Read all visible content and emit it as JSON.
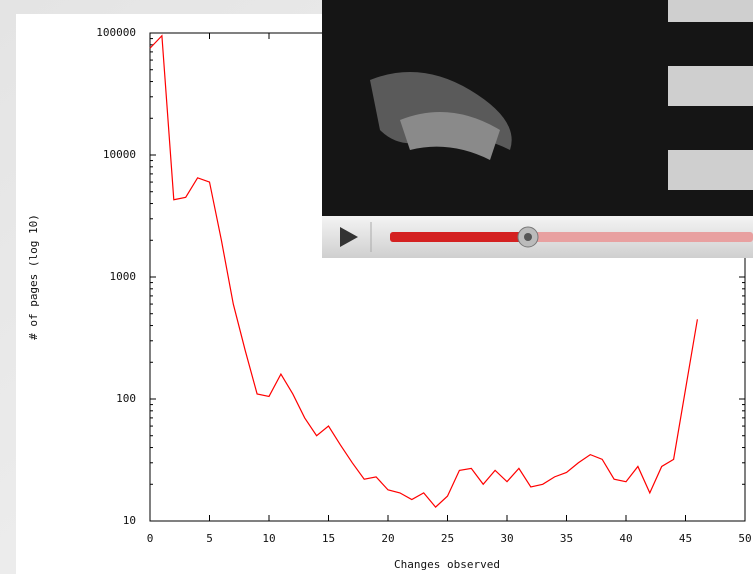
{
  "chart_data": {
    "type": "line",
    "log_y": true,
    "xlabel": "Changes observed",
    "ylabel": "# of pages (log 10)",
    "xlim": [
      0,
      50
    ],
    "ylim": [
      10,
      100000
    ],
    "xticks": [
      0,
      5,
      10,
      15,
      20,
      25,
      30,
      35,
      40,
      45,
      50
    ],
    "yticks": [
      10,
      100,
      1000,
      10000,
      100000
    ],
    "x": [
      0,
      1,
      2,
      3,
      4,
      5,
      6,
      7,
      8,
      9,
      10,
      11,
      12,
      13,
      14,
      15,
      16,
      17,
      18,
      19,
      20,
      21,
      22,
      23,
      24,
      25,
      26,
      27,
      28,
      29,
      30,
      31,
      32,
      33,
      34,
      35,
      36,
      37,
      38,
      39,
      40,
      41,
      42,
      43,
      44,
      45,
      46
    ],
    "series": [
      {
        "color": "#ff0000",
        "values": [
          75000,
          95000,
          4300,
          4500,
          6500,
          6000,
          2000,
          600,
          250,
          110,
          105,
          160,
          110,
          70,
          50,
          60,
          42,
          30,
          22,
          23,
          18,
          17,
          15,
          17,
          13,
          16,
          26,
          27,
          20,
          26,
          21,
          27,
          19,
          20,
          23,
          25,
          30,
          35,
          32,
          22,
          21,
          28,
          17,
          28,
          32,
          120,
          450
        ]
      }
    ]
  }
}
